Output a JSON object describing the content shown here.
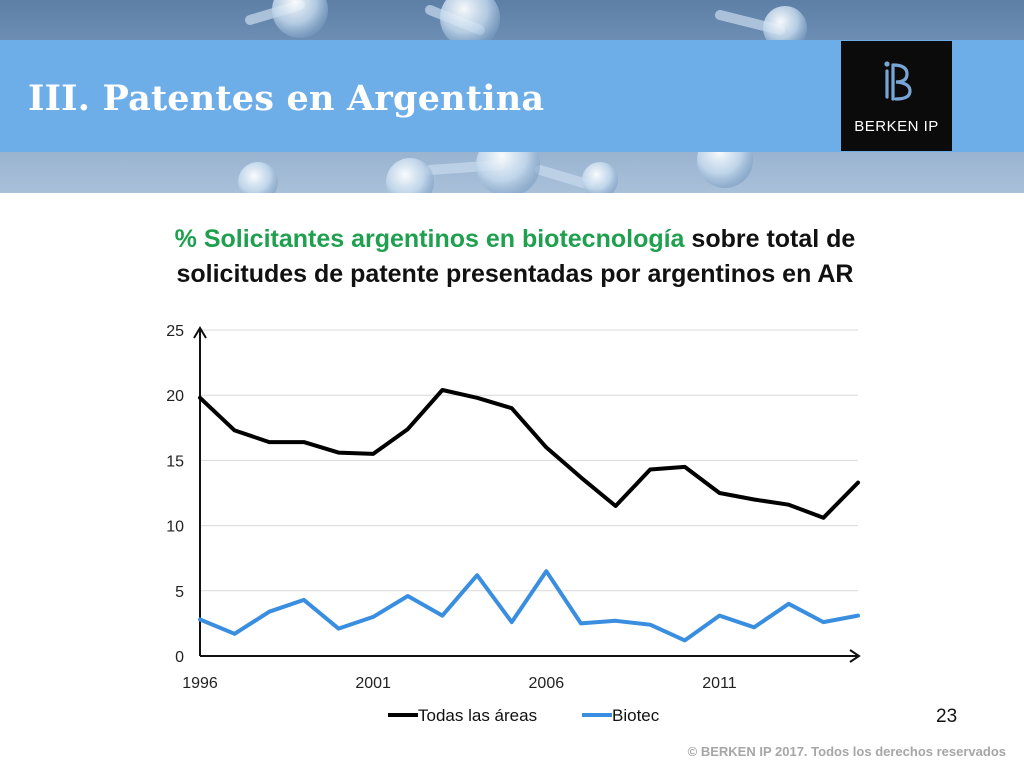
{
  "slide": {
    "title": "III. Patentes en Argentina",
    "logo_text": "BERKEN IP",
    "page_number": "23",
    "footer": "© BERKEN IP 2017. Todos los derechos reservados"
  },
  "colors": {
    "title_bar": "#6daee9",
    "highlight": "#1ea04f",
    "series_all": "#000000",
    "series_biotec": "#3a8ee0"
  },
  "chart_data": {
    "type": "line",
    "title_highlight": "% Solicitantes argentinos en biotecnología",
    "title_rest": " sobre total de solicitudes de patente presentadas por argentinos en AR",
    "xlabel": "",
    "ylabel": "",
    "x": [
      1996,
      1997,
      1998,
      1999,
      2000,
      2001,
      2002,
      2003,
      2004,
      2005,
      2006,
      2007,
      2008,
      2009,
      2010,
      2011,
      2012,
      2013,
      2014,
      2015
    ],
    "x_ticks": [
      1996,
      2001,
      2006,
      2011
    ],
    "ylim": [
      0,
      25
    ],
    "y_ticks": [
      0,
      5,
      10,
      15,
      20,
      25
    ],
    "grid": true,
    "legend_position": "bottom",
    "series": [
      {
        "name": "Todas las áreas",
        "color": "#000000",
        "values": [
          19.8,
          17.3,
          16.4,
          16.4,
          15.6,
          15.5,
          17.4,
          20.4,
          19.8,
          19.0,
          16.0,
          13.7,
          11.5,
          14.3,
          14.5,
          12.5,
          12.0,
          11.6,
          10.6,
          13.3
        ]
      },
      {
        "name": "Biotec",
        "color": "#3a8ee0",
        "values": [
          2.8,
          1.7,
          3.4,
          4.3,
          2.1,
          3.0,
          4.6,
          3.1,
          6.2,
          2.6,
          6.5,
          2.5,
          2.7,
          2.4,
          1.2,
          3.1,
          2.2,
          4.0,
          2.6,
          3.1
        ]
      }
    ]
  }
}
